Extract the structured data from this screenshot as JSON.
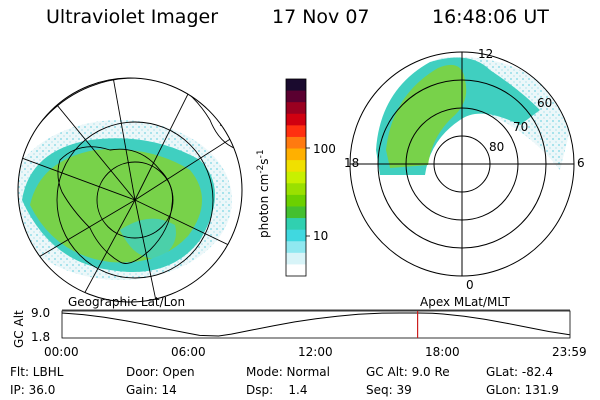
{
  "header": {
    "title": "Ultraviolet Imager",
    "date": "17 Nov 07",
    "time": "16:48:06 UT"
  },
  "left_map": {
    "label": "Geographic Lat/Lon"
  },
  "right_map": {
    "label": "Apex MLat/MLT",
    "mlt_labels": [
      "12",
      "18",
      "6",
      "0"
    ],
    "mlat_labels": [
      "60",
      "70",
      "80"
    ]
  },
  "colorbar": {
    "unit": "photon cm",
    "unit_sup1": "-2",
    "unit_mid": "s",
    "unit_sup2": "-1",
    "ticks": [
      "100",
      "10"
    ],
    "colors": [
      "#1a0a2e",
      "#5a0030",
      "#9a0020",
      "#d00010",
      "#ff3010",
      "#ff7a10",
      "#ffb000",
      "#f0e000",
      "#c8f000",
      "#9ae000",
      "#6cd000",
      "#44c030",
      "#30d0b0",
      "#40d8e0",
      "#90e8f0",
      "#d8f4f8",
      "#ffffff"
    ]
  },
  "chart_data": {
    "type": "line",
    "title": "",
    "ylabel": "GC Alt",
    "ytick": "9.0",
    "ytick_low": "1.8",
    "x_labels": [
      "00:00",
      "06:00",
      "12:00",
      "18:00",
      "23:59"
    ],
    "xlim": [
      0,
      24
    ],
    "ylim": [
      1.8,
      9.0
    ],
    "current_time_hours": 16.8,
    "x": [
      0,
      1,
      2,
      3,
      4,
      5,
      6,
      6.5,
      7,
      7.4,
      8,
      9,
      10,
      11,
      12,
      13,
      14,
      15,
      16,
      16.8,
      17.5,
      18,
      19,
      20,
      21,
      22,
      23,
      23.98
    ],
    "y": [
      9.0,
      8.5,
      7.7,
      6.6,
      5.3,
      3.9,
      2.6,
      2.0,
      1.85,
      1.8,
      2.4,
      3.7,
      5.0,
      6.2,
      7.2,
      8.0,
      8.6,
      8.95,
      9.0,
      9.0,
      8.9,
      8.7,
      8.0,
      7.0,
      5.8,
      4.5,
      3.2,
      2.2
    ]
  },
  "status": {
    "flt": "Flt: LBHL",
    "door": "Door: Open",
    "mode": "Mode: Normal",
    "gc_alt": "GC Alt: 9.0 Re",
    "glat": "GLat: -82.4",
    "ip": "IP: 36.0",
    "gain": "Gain: 14",
    "dsp": "Dsp:    1.4",
    "seq": "Seq: 39",
    "glon": "GLon: 131.9"
  }
}
